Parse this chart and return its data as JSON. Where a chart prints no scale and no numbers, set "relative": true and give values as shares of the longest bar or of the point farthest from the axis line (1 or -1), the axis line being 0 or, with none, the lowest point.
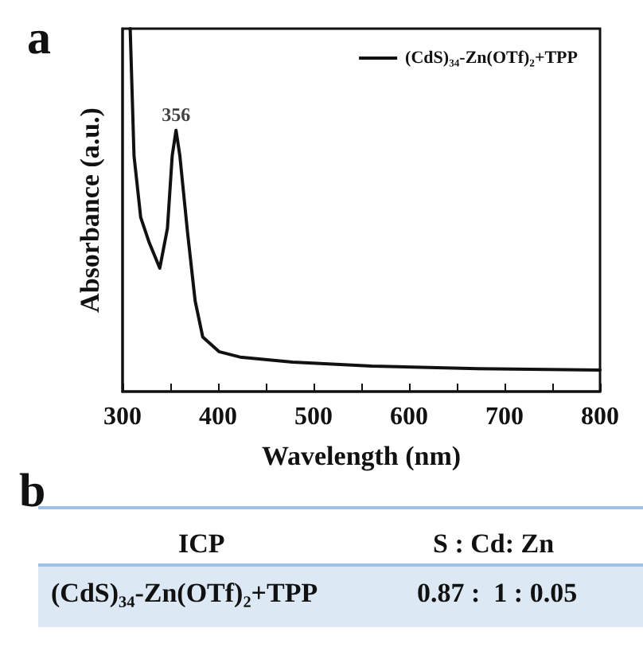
{
  "chart_data": [
    {
      "type": "line",
      "title": "a",
      "xlabel": "Wavelength (nm)",
      "ylabel": "Absorbance (a.u.)",
      "relative": true,
      "legend": "top right",
      "marker": "none",
      "line_style": "solid",
      "grid": false,
      "xlim": [
        300,
        800
      ],
      "xticks": [
        300,
        {
          "value": 350,
          "label": null
        },
        400,
        {
          "value": 450,
          "label": null
        },
        500,
        {
          "value": 550,
          "label": null
        },
        600,
        {
          "value": 650,
          "label": null
        },
        700,
        {
          "value": 750,
          "label": null
        },
        800
      ],
      "annotations": [
        {
          "text": "356",
          "x": 356,
          "y": 0.72
        }
      ],
      "series": [
        {
          "name": "(CdS)₃₄-Zn(OTf)₂+TPP",
          "color": "#111111",
          "x": [
            308,
            312,
            319,
            328,
            339,
            347,
            352,
            356,
            360,
            368,
            376,
            384,
            401,
            423,
            478,
            561,
            672,
            800
          ],
          "values": [
            1.0,
            0.65,
            0.48,
            0.41,
            0.34,
            0.45,
            0.65,
            0.72,
            0.65,
            0.44,
            0.25,
            0.15,
            0.11,
            0.095,
            0.081,
            0.07,
            0.063,
            0.059
          ]
        }
      ]
    },
    {
      "type": "other",
      "title": "b",
      "annotations": [
        "ICP",
        "S : Cd: Zn",
        "(CdS)₃₄-Zn(OTf)₂+TPP",
        "0.87 :  1 : 0.05"
      ]
    }
  ]
}
